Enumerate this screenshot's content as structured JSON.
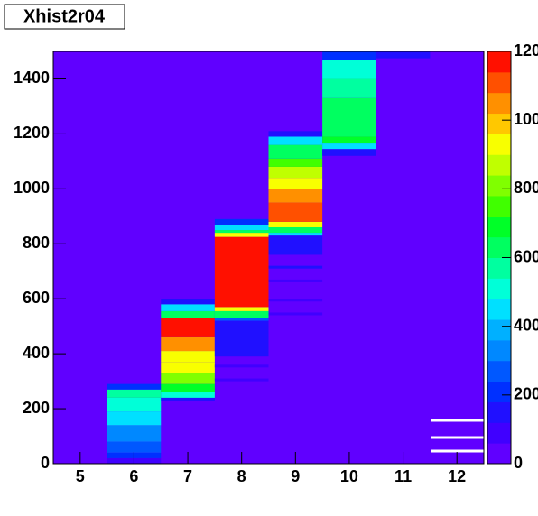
{
  "chart_data": {
    "type": "heatmap",
    "title": "Xhist2r04",
    "xlim": [
      4.5,
      12.5
    ],
    "xticks": [
      5,
      6,
      7,
      8,
      9,
      10,
      11,
      12
    ],
    "ylim": [
      0,
      1500
    ],
    "yticks": [
      0,
      200,
      400,
      600,
      800,
      1000,
      1200,
      1400
    ],
    "zlim": [
      0,
      1200
    ],
    "zticks": [
      0,
      200,
      400,
      600,
      800,
      1000,
      1200
    ],
    "palette": [
      "#6000ff",
      "#4000ff",
      "#2010ff",
      "#0030ff",
      "#0058ff",
      "#0088ff",
      "#00b0ff",
      "#00e0ff",
      "#00ffd8",
      "#00ffa0",
      "#00ff60",
      "#00ff28",
      "#40ff00",
      "#80ff00",
      "#c0ff00",
      "#f8ff00",
      "#ffc800",
      "#ff9000",
      "#ff5000",
      "#ff1000"
    ],
    "columns": [
      {
        "x": 6,
        "cells": [
          [
            0,
            20,
            100
          ],
          [
            20,
            40,
            180
          ],
          [
            40,
            80,
            250
          ],
          [
            80,
            140,
            330
          ],
          [
            140,
            190,
            420
          ],
          [
            190,
            240,
            500
          ],
          [
            240,
            270,
            560
          ],
          [
            270,
            290,
            180
          ]
        ]
      },
      {
        "x": 7,
        "cells": [
          [
            230,
            240,
            150
          ],
          [
            240,
            260,
            500
          ],
          [
            260,
            290,
            700
          ],
          [
            290,
            330,
            820
          ],
          [
            330,
            370,
            900
          ],
          [
            370,
            410,
            950
          ],
          [
            410,
            460,
            1020
          ],
          [
            460,
            530,
            1150
          ],
          [
            530,
            555,
            650
          ],
          [
            555,
            580,
            450
          ],
          [
            580,
            600,
            150
          ]
        ]
      },
      {
        "x": 8,
        "cells": [
          [
            300,
            310,
            100
          ],
          [
            350,
            360,
            100
          ],
          [
            390,
            520,
            130
          ],
          [
            520,
            530,
            250
          ],
          [
            530,
            555,
            650
          ],
          [
            555,
            570,
            900
          ],
          [
            570,
            825,
            1180
          ],
          [
            825,
            840,
            950
          ],
          [
            840,
            850,
            650
          ],
          [
            850,
            870,
            450
          ],
          [
            870,
            890,
            180
          ]
        ]
      },
      {
        "x": 9,
        "cells": [
          [
            540,
            550,
            60
          ],
          [
            590,
            600,
            80
          ],
          [
            660,
            670,
            80
          ],
          [
            710,
            720,
            130
          ],
          [
            760,
            830,
            150
          ],
          [
            830,
            840,
            450
          ],
          [
            840,
            860,
            650
          ],
          [
            860,
            880,
            900
          ],
          [
            880,
            950,
            1120
          ],
          [
            950,
            1000,
            1020
          ],
          [
            1000,
            1040,
            950
          ],
          [
            1040,
            1080,
            850
          ],
          [
            1080,
            1110,
            750
          ],
          [
            1110,
            1160,
            650
          ],
          [
            1160,
            1190,
            450
          ],
          [
            1190,
            1210,
            150
          ]
        ]
      },
      {
        "x": 10,
        "cells": [
          [
            1120,
            1145,
            120
          ],
          [
            1145,
            1165,
            420
          ],
          [
            1165,
            1190,
            700
          ],
          [
            1190,
            1330,
            620
          ],
          [
            1330,
            1400,
            580
          ],
          [
            1400,
            1470,
            480
          ],
          [
            1470,
            1500,
            180
          ]
        ]
      },
      {
        "x": 11,
        "cells": [
          [
            1475,
            1500,
            120
          ]
        ]
      }
    ]
  }
}
